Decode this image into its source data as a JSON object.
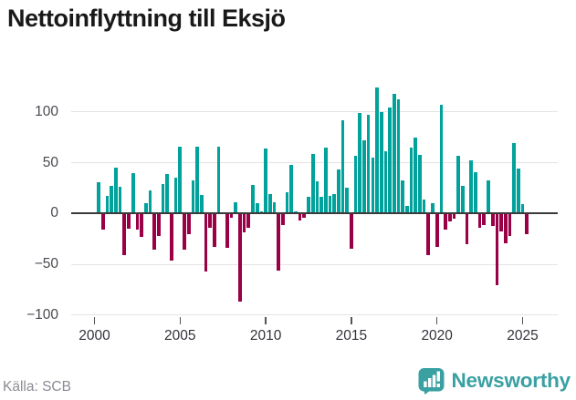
{
  "title": "Nettoinflyttning till Eksjö",
  "source": "Källa: SCB",
  "branding": {
    "logo_text": "Newsworthy"
  },
  "colors": {
    "positive_bar": "#00a29b",
    "negative_bar": "#9a0046",
    "zero_axis": "#3a3a3a",
    "gridline": "#e4e4e4",
    "brand_teal": "#3aa0a2",
    "title_text": "#191919",
    "source_text": "#8b8b94"
  },
  "chart_data": {
    "type": "bar",
    "title": "Nettoinflyttning till Eksjö",
    "frequency": "quarterly",
    "start_year": 2000,
    "start_quarter": 1,
    "series": [
      {
        "name": "Nettoinflyttning",
        "values": [
          0,
          31,
          -16,
          17,
          27,
          45,
          26,
          -41,
          -15,
          40,
          -16,
          -23,
          10,
          23,
          -36,
          -22,
          29,
          39,
          -46,
          35,
          66,
          -36,
          -20,
          33,
          66,
          18,
          -57,
          -14,
          -33,
          66,
          0,
          -34,
          -4,
          11,
          -87,
          -19,
          -14,
          28,
          10,
          2,
          64,
          19,
          11,
          -56,
          -11,
          21,
          48,
          2,
          -7,
          -4,
          16,
          59,
          32,
          16,
          65,
          17,
          19,
          43,
          92,
          25,
          -35,
          57,
          99,
          72,
          97,
          55,
          124,
          100,
          61,
          104,
          118,
          112,
          33,
          7,
          65,
          75,
          58,
          14,
          -41,
          10,
          -33,
          107,
          -16,
          -8,
          -5,
          57,
          27,
          -30,
          52,
          41,
          -14,
          -11,
          33,
          -12,
          -71,
          -18,
          -29,
          -22,
          69,
          44,
          9,
          -20
        ]
      }
    ],
    "y_ticks": [
      100,
      50,
      0,
      -50,
      -100
    ],
    "y_tick_labels": [
      "100",
      "50",
      "0",
      "−50",
      "−100"
    ],
    "x_ticks": [
      2000,
      2005,
      2010,
      2015,
      2020,
      2025
    ],
    "x_tick_labels": [
      "2000",
      "2005",
      "2010",
      "2015",
      "2020",
      "2025"
    ],
    "ylim": [
      -100,
      125
    ],
    "grid": true,
    "legend": "none",
    "positive_color": "#00a29b",
    "negative_color": "#9a0046"
  }
}
